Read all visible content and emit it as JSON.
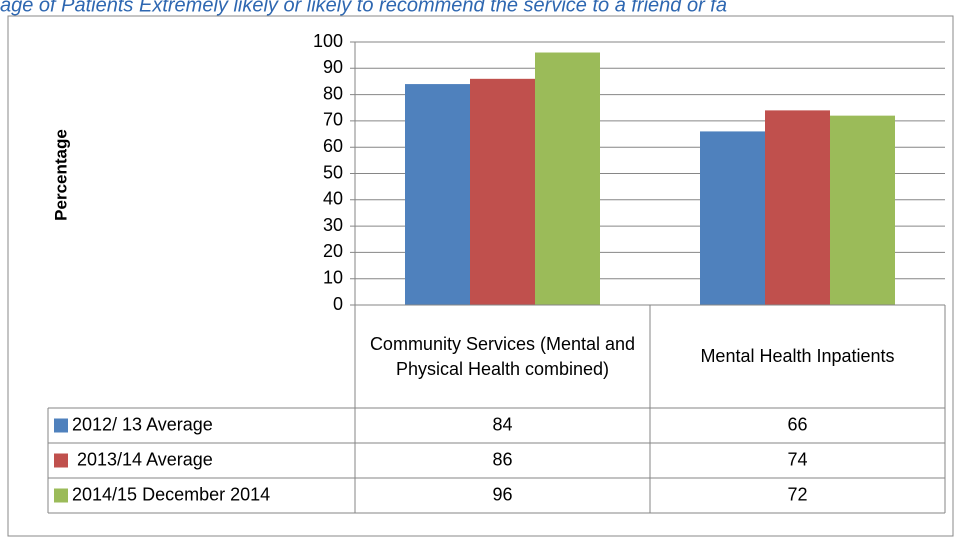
{
  "chart_data": {
    "type": "bar",
    "title": "age of Patients Extremely likely or likely to recommend the service to a friend or fa",
    "y_label": "Percentage",
    "categories": [
      "Community Services (Mental and Physical Health combined)",
      "Mental Health Inpatients"
    ],
    "series": [
      {
        "name": "2012/ 13 Average",
        "color": "#4f81bd",
        "values": [
          84,
          66
        ]
      },
      {
        "name": " 2013/14 Average",
        "color": "#c0504d",
        "values": [
          86,
          74
        ]
      },
      {
        "name": "2014/15 December 2014",
        "color": "#9bbb59",
        "values": [
          96,
          72
        ]
      }
    ],
    "ylim": [
      0,
      100
    ],
    "yticks": [
      0,
      10,
      20,
      30,
      40,
      50,
      60,
      70,
      80,
      90,
      100
    ],
    "grid": true
  }
}
